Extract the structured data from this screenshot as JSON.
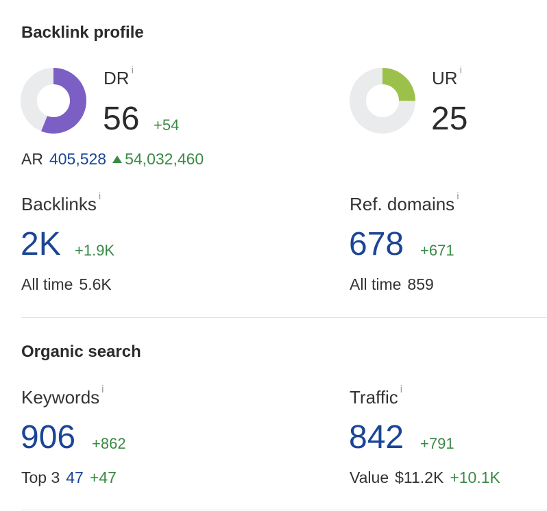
{
  "backlink_profile": {
    "title": "Backlink profile",
    "dr": {
      "label": "DR",
      "info": "i",
      "value": "56",
      "delta": "+54",
      "ring_fraction": 0.56,
      "ring_color": "#7b5fc4"
    },
    "ur": {
      "label": "UR",
      "info": "i",
      "value": "25",
      "ring_fraction": 0.25,
      "ring_color": "#9cc14a"
    },
    "ar": {
      "label": "AR",
      "value": "405,528",
      "delta": "54,032,460"
    },
    "backlinks": {
      "label": "Backlinks",
      "info": "i",
      "value": "2K",
      "delta": "+1.9K",
      "sub_label": "All time",
      "sub_value": "5.6K"
    },
    "ref_domains": {
      "label": "Ref. domains",
      "info": "i",
      "value": "678",
      "delta": "+671",
      "sub_label": "All time",
      "sub_value": "859"
    }
  },
  "organic_search": {
    "title": "Organic search",
    "keywords": {
      "label": "Keywords",
      "info": "i",
      "value": "906",
      "delta": "+862",
      "sub_label": "Top 3",
      "sub_value": "47",
      "sub_delta": "+47"
    },
    "traffic": {
      "label": "Traffic",
      "info": "i",
      "value": "842",
      "delta": "+791",
      "sub_label": "Value",
      "sub_value": "$11.2K",
      "sub_delta": "+10.1K"
    }
  },
  "colors": {
    "ring_track": "#e9ebed",
    "blue": "#1b4596",
    "green": "#3a8a45"
  }
}
